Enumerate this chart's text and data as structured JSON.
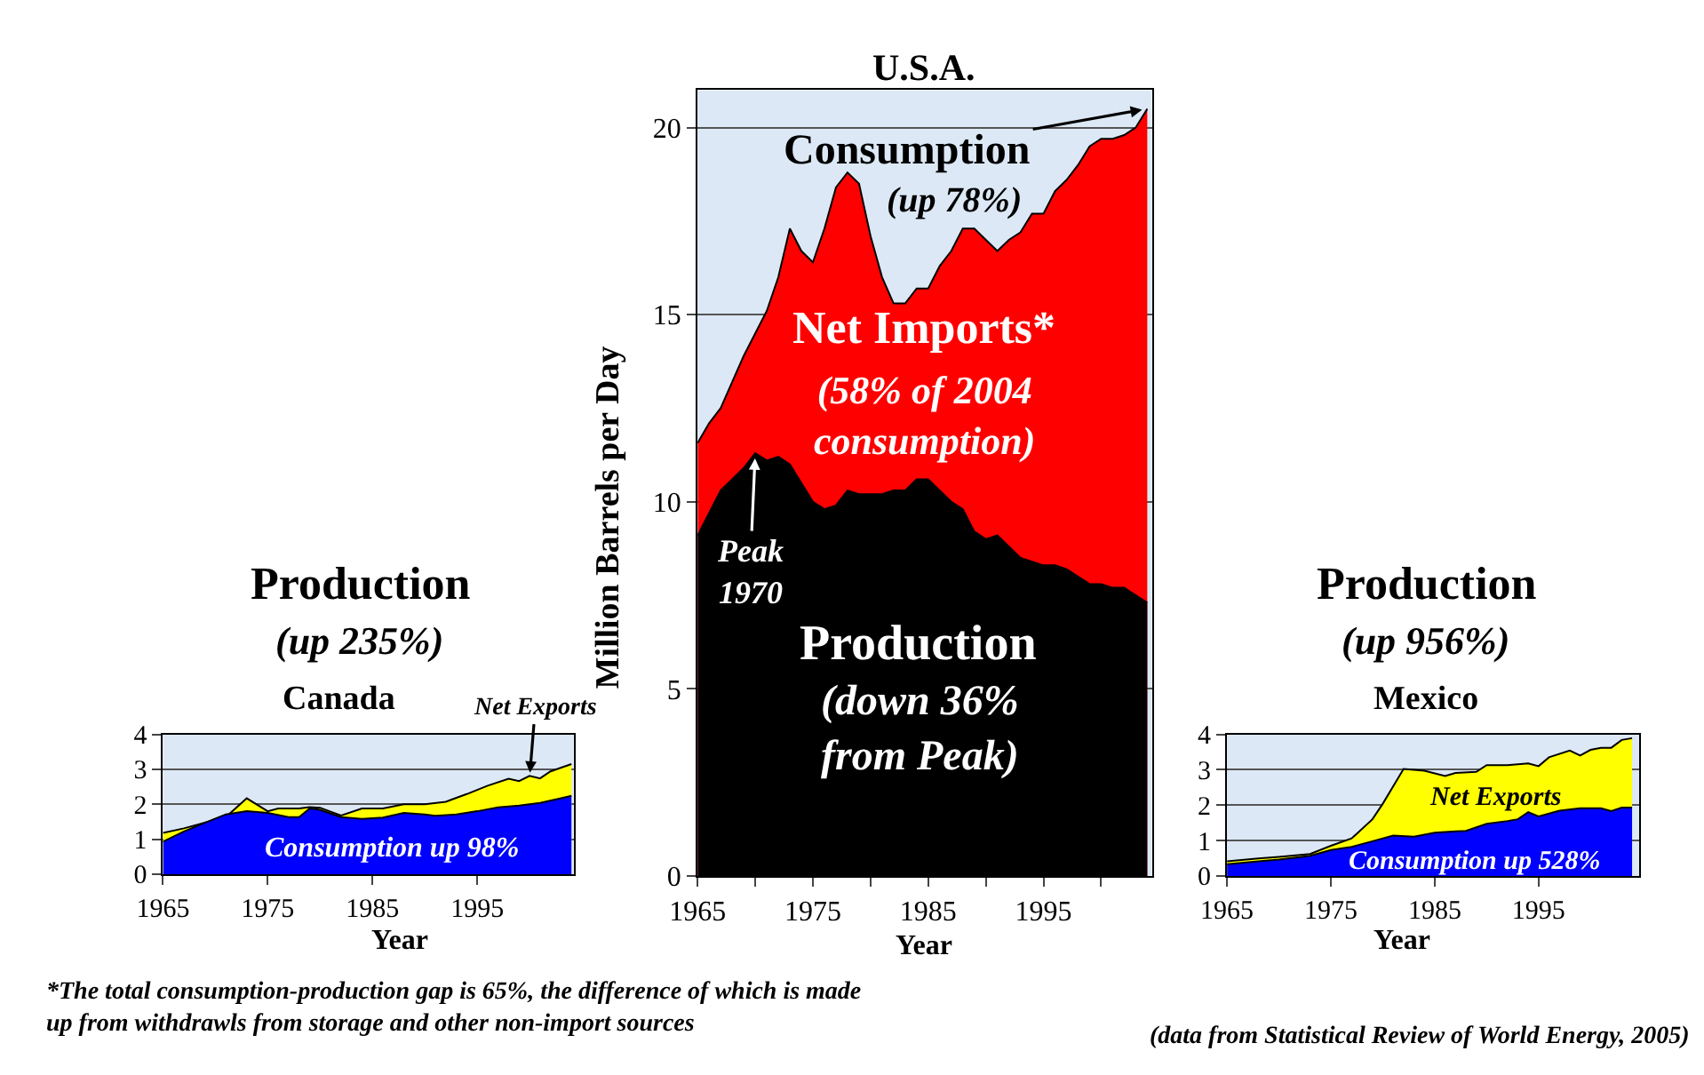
{
  "chart_data": [
    {
      "type": "area",
      "title": "Canada",
      "xlabel": "Year",
      "xlim": [
        1965,
        2004.2
      ],
      "ylim": [
        0,
        4
      ],
      "xticks": [
        1965,
        1975,
        1985,
        1995
      ],
      "yticks": [
        0,
        1,
        2,
        3,
        4
      ],
      "grid": "y",
      "series": [
        {
          "color": "#ffff00",
          "x": [
            1965,
            1967,
            1969,
            1971,
            1973,
            1975,
            1976,
            1978,
            1979,
            1980,
            1982,
            1984,
            1986,
            1988,
            1990,
            1992,
            1994,
            1996,
            1998,
            1999,
            2000,
            2001,
            2002,
            2004
          ],
          "values": [
            1.18,
            1.31,
            1.47,
            1.63,
            2.17,
            1.8,
            1.88,
            1.88,
            1.92,
            1.9,
            1.68,
            1.88,
            1.88,
            2.0,
            2.0,
            2.07,
            2.29,
            2.53,
            2.73,
            2.66,
            2.81,
            2.74,
            2.94,
            3.15
          ]
        },
        {
          "color": "#0000ff",
          "x": [
            1965,
            1967,
            1969,
            1971,
            1973,
            1975,
            1977,
            1978,
            1979,
            1980,
            1982,
            1984,
            1986,
            1988,
            1990,
            1991,
            1993,
            1995,
            1997,
            1999,
            2001,
            2003,
            2004
          ],
          "values": [
            0.93,
            1.22,
            1.47,
            1.71,
            1.8,
            1.75,
            1.63,
            1.63,
            1.88,
            1.84,
            1.63,
            1.58,
            1.62,
            1.75,
            1.71,
            1.67,
            1.71,
            1.8,
            1.91,
            1.96,
            2.04,
            2.17,
            2.24
          ]
        }
      ],
      "annotations": [
        "Production",
        "(up 235%)",
        {
          "text": "Net Exports",
          "x": 2000,
          "y": 2.75
        },
        "Consumption up 98%"
      ]
    },
    {
      "type": "area",
      "title": "U.S.A.",
      "xlabel": "Year",
      "ylabel": "Million Barrels per Day",
      "xlim": [
        1965,
        2004.4
      ],
      "ylim": [
        0,
        21
      ],
      "xticks": [
        1965,
        {
          "value": 1970,
          "label": null
        },
        1975,
        {
          "value": 1980,
          "label": null
        },
        1985,
        {
          "value": 1990,
          "label": null
        },
        1995,
        {
          "value": 2000,
          "label": null
        }
      ],
      "yticks": [
        0,
        5,
        10,
        15,
        20
      ],
      "grid": "y",
      "x": [
        1965,
        1966,
        1967,
        1968,
        1969,
        1970,
        1971,
        1972,
        1973,
        1974,
        1975,
        1976,
        1977,
        1978,
        1979,
        1980,
        1981,
        1982,
        1983,
        1984,
        1985,
        1986,
        1987,
        1988,
        1989,
        1990,
        1991,
        1992,
        1993,
        1994,
        1995,
        1996,
        1997,
        1998,
        1999,
        2000,
        2001,
        2002,
        2003,
        2004
      ],
      "series": [
        {
          "color": "#ff0000",
          "values": [
            11.57,
            12.1,
            12.5,
            13.2,
            13.9,
            14.5,
            15.1,
            16.0,
            17.3,
            16.7,
            16.4,
            17.3,
            18.4,
            18.8,
            18.5,
            17.1,
            16.0,
            15.3,
            15.3,
            15.7,
            15.7,
            16.3,
            16.7,
            17.3,
            17.3,
            17.0,
            16.7,
            17.0,
            17.2,
            17.7,
            17.7,
            18.3,
            18.6,
            19.0,
            19.5,
            19.7,
            19.7,
            19.8,
            20.0,
            20.5
          ]
        },
        {
          "color": "#000000",
          "values": [
            9.1,
            9.7,
            10.3,
            10.6,
            10.9,
            11.3,
            11.1,
            11.2,
            11.0,
            10.5,
            10.0,
            9.8,
            9.9,
            10.3,
            10.2,
            10.2,
            10.2,
            10.3,
            10.3,
            10.6,
            10.6,
            10.3,
            10.0,
            9.8,
            9.2,
            9.0,
            9.1,
            8.8,
            8.5,
            8.4,
            8.3,
            8.3,
            8.2,
            8.0,
            7.8,
            7.8,
            7.7,
            7.7,
            7.5,
            7.3
          ]
        }
      ],
      "annotations": [
        {
          "text": "Consumption",
          "x": 2004,
          "y": 20.5
        },
        "(up 78%)",
        "Net Imports*",
        "(58% of 2004\nconsumption)",
        {
          "text": "Peak\n1970",
          "x": 1970,
          "y": 11.3
        },
        "Production",
        "(down 36%\nfrom Peak)",
        "*The total consumption-production gap is 65%, the difference of which is made\nup from withdrawls from storage and other non-import sources",
        "(data from Statistical Review of World Energy, 2005)"
      ]
    },
    {
      "type": "area",
      "title": "Mexico",
      "xlabel": "Year",
      "xlim": [
        1965,
        2004.7
      ],
      "ylim": [
        0,
        4
      ],
      "xticks": [
        1965,
        1975,
        1985,
        1995
      ],
      "yticks": [
        0,
        1,
        2,
        3,
        4
      ],
      "grid": "y",
      "series": [
        {
          "color": "#ffff00",
          "x": [
            1965,
            1968,
            1970,
            1973,
            1975,
            1977,
            1979,
            1980,
            1982,
            1984,
            1986,
            1987,
            1989,
            1990,
            1992,
            1994,
            1995,
            1996,
            1998,
            1999,
            2000,
            2001,
            2002,
            2003,
            2004
          ],
          "values": [
            0.41,
            0.49,
            0.54,
            0.62,
            0.85,
            1.06,
            1.6,
            2.04,
            3.02,
            2.97,
            2.82,
            2.91,
            2.94,
            3.13,
            3.13,
            3.18,
            3.1,
            3.35,
            3.54,
            3.4,
            3.56,
            3.62,
            3.62,
            3.84,
            3.89
          ]
        },
        {
          "color": "#0000ff",
          "x": [
            1965,
            1968,
            1970,
            1973,
            1975,
            1977,
            1979,
            1981,
            1983,
            1985,
            1987,
            1988,
            1990,
            1992,
            1993,
            1994,
            1995,
            1997,
            1999,
            2001,
            2002,
            2003,
            2004
          ],
          "values": [
            0.33,
            0.41,
            0.46,
            0.57,
            0.73,
            0.82,
            0.98,
            1.14,
            1.11,
            1.22,
            1.26,
            1.27,
            1.47,
            1.55,
            1.6,
            1.8,
            1.68,
            1.84,
            1.91,
            1.91,
            1.83,
            1.93,
            1.93
          ]
        }
      ],
      "annotations": [
        "Production",
        "(up 956%)",
        "Net Exports",
        "Consumption up 528%"
      ]
    }
  ]
}
